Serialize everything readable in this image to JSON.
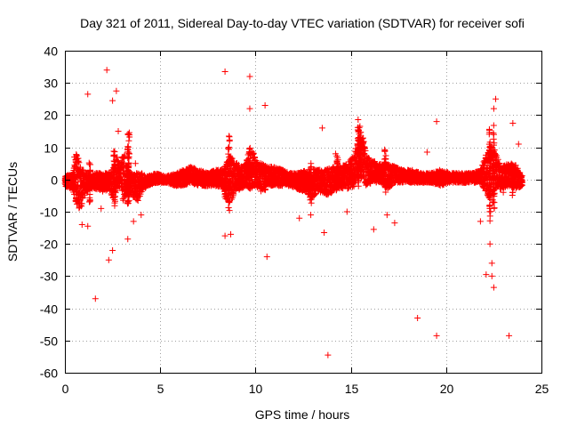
{
  "chart_data": {
    "type": "scatter",
    "title": "Day 321 of 2011, Sidereal Day-to-day VTEC variation (SDTVAR) for receiver sofi",
    "xlabel": "GPS time / hours",
    "ylabel": "SDTVAR / TECUs",
    "xlim": [
      0,
      25
    ],
    "ylim": [
      -60,
      40
    ],
    "xticks": [
      0,
      5,
      10,
      15,
      20,
      25
    ],
    "yticks": [
      -60,
      -50,
      -40,
      -30,
      -20,
      -10,
      0,
      10,
      20,
      30,
      40
    ],
    "grid": true,
    "marker": "+",
    "color": "#ff0000",
    "band": [
      [
        0.0,
        -2,
        1
      ],
      [
        0.4,
        -3,
        2
      ],
      [
        0.6,
        -8,
        9
      ],
      [
        0.8,
        -10,
        4
      ],
      [
        1.0,
        -5,
        3
      ],
      [
        1.3,
        -3,
        2
      ],
      [
        1.6,
        -3,
        2
      ],
      [
        2.0,
        -4,
        2
      ],
      [
        2.3,
        -3,
        2
      ],
      [
        2.5,
        -6,
        4
      ],
      [
        2.7,
        -4,
        8
      ],
      [
        2.9,
        -2,
        4
      ],
      [
        3.1,
        -8,
        10
      ],
      [
        3.3,
        -3,
        3
      ],
      [
        3.5,
        -5,
        2
      ],
      [
        3.8,
        -7,
        2
      ],
      [
        4.0,
        -4,
        2
      ],
      [
        4.3,
        -2,
        1
      ],
      [
        4.8,
        -1,
        2
      ],
      [
        5.3,
        -1,
        1
      ],
      [
        5.8,
        -2,
        2
      ],
      [
        6.2,
        -2,
        3
      ],
      [
        6.6,
        -1,
        4
      ],
      [
        7.0,
        -2,
        3
      ],
      [
        7.5,
        -2,
        2
      ],
      [
        7.9,
        -2,
        3
      ],
      [
        8.3,
        -3,
        3
      ],
      [
        8.6,
        -8,
        8
      ],
      [
        8.9,
        -4,
        6
      ],
      [
        9.2,
        -3,
        4
      ],
      [
        9.5,
        -2,
        5
      ],
      [
        9.7,
        -3,
        12
      ],
      [
        10.0,
        -2,
        6
      ],
      [
        10.3,
        -4,
        5
      ],
      [
        10.6,
        -2,
        4
      ],
      [
        11.0,
        -2,
        4
      ],
      [
        11.4,
        -2,
        3
      ],
      [
        11.8,
        -2,
        2
      ],
      [
        12.2,
        -3,
        2
      ],
      [
        12.6,
        -4,
        3
      ],
      [
        12.9,
        -6,
        4
      ],
      [
        13.3,
        -4,
        3
      ],
      [
        13.7,
        -5,
        3
      ],
      [
        14.0,
        -4,
        4
      ],
      [
        14.4,
        -3,
        4
      ],
      [
        14.8,
        -3,
        5
      ],
      [
        15.2,
        -2,
        8
      ],
      [
        15.4,
        2,
        16
      ],
      [
        15.6,
        0,
        14
      ],
      [
        15.8,
        -2,
        8
      ],
      [
        16.1,
        -1,
        6
      ],
      [
        16.5,
        -1,
        5
      ],
      [
        16.9,
        -3,
        5
      ],
      [
        17.3,
        -1,
        4
      ],
      [
        17.7,
        -1,
        3
      ],
      [
        18.2,
        -1,
        3
      ],
      [
        18.7,
        -1,
        2
      ],
      [
        19.2,
        -1,
        2
      ],
      [
        19.7,
        -2,
        3
      ],
      [
        20.2,
        -1,
        2
      ],
      [
        20.6,
        -1,
        2
      ],
      [
        21.0,
        -1,
        2
      ],
      [
        21.4,
        -1,
        2
      ],
      [
        21.8,
        -1,
        3
      ],
      [
        22.1,
        -4,
        8
      ],
      [
        22.4,
        -8,
        12
      ],
      [
        22.6,
        -3,
        8
      ],
      [
        22.9,
        -3,
        4
      ],
      [
        23.3,
        -2,
        5
      ],
      [
        23.6,
        -3,
        5
      ],
      [
        24.0,
        -2,
        1
      ]
    ],
    "spikes": [
      [
        0.6,
        -6,
        8
      ],
      [
        1.3,
        -9,
        6
      ],
      [
        2.6,
        -9,
        9
      ],
      [
        3.3,
        -9,
        12
      ],
      [
        3.35,
        -7,
        16
      ],
      [
        8.4,
        -6,
        5
      ],
      [
        8.6,
        -10,
        16
      ],
      [
        9.7,
        -3,
        10
      ],
      [
        10.5,
        -4,
        5
      ],
      [
        12.9,
        -9,
        6
      ],
      [
        14.3,
        -6,
        8
      ],
      [
        15.4,
        -3,
        19
      ],
      [
        15.5,
        -1,
        17
      ],
      [
        16.8,
        -6,
        10
      ],
      [
        22.3,
        -14,
        16
      ],
      [
        22.5,
        -9,
        17
      ],
      [
        23.5,
        -5,
        6
      ]
    ],
    "points": [
      [
        1.2,
        26.5
      ],
      [
        1.2,
        -14.5
      ],
      [
        1.6,
        -37
      ],
      [
        2.2,
        34
      ],
      [
        2.3,
        -25
      ],
      [
        2.5,
        -22
      ],
      [
        2.7,
        27.5
      ],
      [
        3.3,
        -18.5
      ],
      [
        8.4,
        33.5
      ],
      [
        8.4,
        -17.5
      ],
      [
        8.7,
        -17
      ],
      [
        9.7,
        32
      ],
      [
        9.7,
        22
      ],
      [
        10.5,
        23
      ],
      [
        10.6,
        -24
      ],
      [
        13.6,
        -16.5
      ],
      [
        13.8,
        -54.5
      ],
      [
        18.5,
        -43
      ],
      [
        19.5,
        18
      ],
      [
        19.5,
        -48.5
      ],
      [
        22.1,
        -29.5
      ],
      [
        22.3,
        -20
      ],
      [
        22.4,
        -30
      ],
      [
        22.4,
        -26
      ],
      [
        22.5,
        -33.5
      ],
      [
        22.6,
        25
      ],
      [
        22.5,
        22
      ],
      [
        23.3,
        -48.5
      ],
      [
        23.5,
        17.5
      ],
      [
        0.3,
        1
      ],
      [
        0.9,
        -14
      ],
      [
        1.9,
        -9
      ],
      [
        2.5,
        24.5
      ],
      [
        2.8,
        15
      ],
      [
        3.6,
        -13
      ],
      [
        4.0,
        -11
      ],
      [
        12.3,
        -12
      ],
      [
        12.9,
        -11
      ],
      [
        13.5,
        16
      ],
      [
        14.2,
        8
      ],
      [
        14.8,
        -10
      ],
      [
        16.2,
        -15.5
      ],
      [
        16.9,
        -11
      ],
      [
        17.3,
        -13.5
      ],
      [
        19.0,
        8.5
      ],
      [
        21.8,
        -13
      ],
      [
        23.0,
        -4
      ],
      [
        23.8,
        11
      ],
      [
        0.5,
        7
      ],
      [
        3.7,
        5
      ]
    ]
  }
}
